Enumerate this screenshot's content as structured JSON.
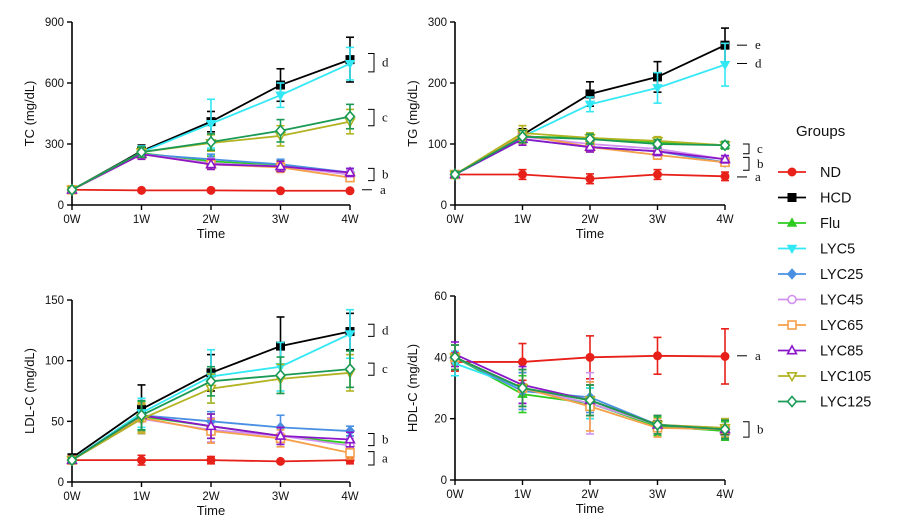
{
  "legend": {
    "title": "Groups",
    "items": [
      {
        "name": "ND",
        "color": "#e8201a",
        "marker": "circle"
      },
      {
        "name": "HCD",
        "color": "#000000",
        "marker": "square"
      },
      {
        "name": "Flu",
        "color": "#2ecc1f",
        "marker": "triangle-up"
      },
      {
        "name": "LYC5",
        "color": "#33e8f5",
        "marker": "triangle-down"
      },
      {
        "name": "LYC25",
        "color": "#4a90e2",
        "marker": "diamond"
      },
      {
        "name": "LYC45",
        "color": "#d291f0",
        "marker": "circle-open"
      },
      {
        "name": "LYC65",
        "color": "#f5a04a",
        "marker": "square-open"
      },
      {
        "name": "LYC85",
        "color": "#8a16c9",
        "marker": "triangle-open"
      },
      {
        "name": "LYC105",
        "color": "#b3b322",
        "marker": "triangle-down-open"
      },
      {
        "name": "LYC125",
        "color": "#1a9a55",
        "marker": "diamond-open"
      }
    ]
  },
  "chart_data": [
    {
      "type": "line",
      "ylabel": "TC (mg/dL)",
      "xlabel": "Time",
      "categories": [
        "0W",
        "1W",
        "2W",
        "3W",
        "4W"
      ],
      "ylim": [
        0,
        900
      ],
      "yticks": [
        "0",
        "300",
        "600",
        "900"
      ],
      "series": [
        {
          "name": "ND",
          "values": [
            75,
            72,
            72,
            70,
            70
          ],
          "errors": [
            8,
            6,
            6,
            6,
            6
          ]
        },
        {
          "name": "HCD",
          "values": [
            75,
            265,
            410,
            590,
            715
          ],
          "errors": [
            10,
            30,
            50,
            80,
            110
          ]
        },
        {
          "name": "Flu",
          "values": [
            75,
            255,
            215,
            195,
            150
          ],
          "errors": [
            10,
            25,
            25,
            25,
            20
          ]
        },
        {
          "name": "LYC5",
          "values": [
            75,
            260,
            400,
            540,
            695
          ],
          "errors": [
            10,
            30,
            120,
            60,
            80
          ]
        },
        {
          "name": "LYC25",
          "values": [
            75,
            250,
            225,
            200,
            160
          ],
          "errors": [
            10,
            25,
            25,
            25,
            20
          ]
        },
        {
          "name": "LYC45",
          "values": [
            75,
            250,
            205,
            190,
            150
          ],
          "errors": [
            10,
            25,
            25,
            25,
            20
          ]
        },
        {
          "name": "LYC65",
          "values": [
            75,
            250,
            200,
            185,
            135
          ],
          "errors": [
            10,
            25,
            25,
            25,
            20
          ]
        },
        {
          "name": "LYC85",
          "values": [
            75,
            250,
            200,
            190,
            160
          ],
          "errors": [
            10,
            25,
            25,
            25,
            20
          ]
        },
        {
          "name": "LYC105",
          "values": [
            75,
            260,
            305,
            340,
            410
          ],
          "errors": [
            10,
            25,
            40,
            50,
            60
          ]
        },
        {
          "name": "LYC125",
          "values": [
            75,
            260,
            310,
            365,
            435
          ],
          "errors": [
            10,
            25,
            40,
            55,
            60
          ]
        }
      ],
      "significance": [
        {
          "label": "d",
          "from": 745,
          "to": 655
        },
        {
          "label": "c",
          "from": 470,
          "to": 390
        },
        {
          "label": "b",
          "from": 180,
          "to": 120
        },
        {
          "label": "a",
          "from": 75,
          "to": null
        }
      ]
    },
    {
      "type": "line",
      "ylabel": "TG (mg/dL)",
      "xlabel": "Time",
      "categories": [
        "0W",
        "1W",
        "2W",
        "3W",
        "4W"
      ],
      "ylim": [
        0,
        300
      ],
      "yticks": [
        "0",
        "100",
        "200",
        "300"
      ],
      "series": [
        {
          "name": "ND",
          "values": [
            50,
            50,
            43,
            50,
            47
          ],
          "errors": [
            5,
            8,
            8,
            8,
            7
          ]
        },
        {
          "name": "HCD",
          "values": [
            50,
            115,
            182,
            210,
            262
          ],
          "errors": [
            5,
            10,
            20,
            25,
            28
          ]
        },
        {
          "name": "Flu",
          "values": [
            50,
            112,
            110,
            103,
            98
          ],
          "errors": [
            5,
            10,
            8,
            7,
            6
          ]
        },
        {
          "name": "LYC5",
          "values": [
            50,
            112,
            165,
            192,
            230
          ],
          "errors": [
            5,
            10,
            12,
            25,
            35
          ]
        },
        {
          "name": "LYC25",
          "values": [
            50,
            108,
            95,
            88,
            70
          ],
          "errors": [
            5,
            10,
            8,
            7,
            6
          ]
        },
        {
          "name": "LYC45",
          "values": [
            50,
            112,
            100,
            92,
            75
          ],
          "errors": [
            5,
            10,
            8,
            7,
            6
          ]
        },
        {
          "name": "LYC65",
          "values": [
            50,
            115,
            95,
            82,
            70
          ],
          "errors": [
            5,
            15,
            8,
            7,
            6
          ]
        },
        {
          "name": "LYC85",
          "values": [
            50,
            108,
            95,
            88,
            75
          ],
          "errors": [
            5,
            10,
            8,
            7,
            6
          ]
        },
        {
          "name": "LYC105",
          "values": [
            50,
            118,
            110,
            105,
            98
          ],
          "errors": [
            5,
            12,
            8,
            7,
            6
          ]
        },
        {
          "name": "LYC125",
          "values": [
            50,
            112,
            108,
            100,
            98
          ],
          "errors": [
            5,
            10,
            8,
            7,
            6
          ]
        }
      ],
      "significance": [
        {
          "label": "e",
          "from": 262,
          "to": null
        },
        {
          "label": "d",
          "from": 232,
          "to": null
        },
        {
          "label": "c",
          "from": 100,
          "to": 84
        },
        {
          "label": "b",
          "from": 78,
          "to": 57
        },
        {
          "label": "a",
          "from": 46,
          "to": null
        }
      ]
    },
    {
      "type": "line",
      "ylabel": "LDL-C (mg/dL)",
      "xlabel": "Time",
      "categories": [
        "0W",
        "1W",
        "2W",
        "3W",
        "4W"
      ],
      "ylim": [
        0,
        150
      ],
      "yticks": [
        "0",
        "50",
        "100",
        "150"
      ],
      "series": [
        {
          "name": "ND",
          "values": [
            18,
            18,
            18,
            17,
            18
          ],
          "errors": [
            2,
            4,
            3,
            1,
            3
          ]
        },
        {
          "name": "HCD",
          "values": [
            20,
            60,
            90,
            112,
            124
          ],
          "errors": [
            2,
            20,
            15,
            24,
            15
          ]
        },
        {
          "name": "Flu",
          "values": [
            18,
            54,
            46,
            38,
            32
          ],
          "errors": [
            2,
            12,
            10,
            7,
            6
          ]
        },
        {
          "name": "LYC5",
          "values": [
            18,
            57,
            87,
            95,
            122
          ],
          "errors": [
            2,
            12,
            22,
            20,
            20
          ]
        },
        {
          "name": "LYC25",
          "values": [
            18,
            55,
            50,
            45,
            42
          ],
          "errors": [
            2,
            12,
            8,
            10,
            4
          ]
        },
        {
          "name": "LYC45",
          "values": [
            18,
            52,
            43,
            38,
            30
          ],
          "errors": [
            2,
            12,
            10,
            7,
            6
          ]
        },
        {
          "name": "LYC65",
          "values": [
            18,
            53,
            42,
            36,
            24
          ],
          "errors": [
            2,
            12,
            10,
            7,
            5
          ]
        },
        {
          "name": "LYC85",
          "values": [
            18,
            55,
            46,
            38,
            35
          ],
          "errors": [
            2,
            12,
            10,
            7,
            6
          ]
        },
        {
          "name": "LYC105",
          "values": [
            18,
            52,
            77,
            85,
            90
          ],
          "errors": [
            2,
            12,
            12,
            12,
            15
          ]
        },
        {
          "name": "LYC125",
          "values": [
            18,
            55,
            83,
            88,
            93
          ],
          "errors": [
            2,
            12,
            12,
            15,
            15
          ]
        }
      ],
      "significance": [
        {
          "label": "d",
          "from": 130,
          "to": 120
        },
        {
          "label": "c",
          "from": 98,
          "to": 88
        },
        {
          "label": "b",
          "from": 40,
          "to": 30
        },
        {
          "label": "a",
          "from": 25,
          "to": 14
        }
      ]
    },
    {
      "type": "line",
      "ylabel": "HDL-C (mg/dL)",
      "xlabel": "Time",
      "categories": [
        "0W",
        "1W",
        "2W",
        "3W",
        "4W"
      ],
      "ylim": [
        0,
        60
      ],
      "yticks": [
        "0",
        "20",
        "40",
        "60"
      ],
      "series": [
        {
          "name": "ND",
          "values": [
            38.5,
            38.5,
            40,
            40.5,
            40.3
          ],
          "errors": [
            3,
            6,
            7,
            6,
            9
          ]
        },
        {
          "name": "HCD",
          "values": [
            40,
            30,
            26,
            18,
            16
          ],
          "errors": [
            4,
            5,
            5,
            3,
            3
          ]
        },
        {
          "name": "Flu",
          "values": [
            40,
            28,
            25,
            17.5,
            16
          ],
          "errors": [
            4,
            6,
            5,
            3,
            3
          ]
        },
        {
          "name": "LYC5",
          "values": [
            38,
            30,
            25,
            18,
            16.5
          ],
          "errors": [
            4,
            6,
            5,
            3,
            3
          ]
        },
        {
          "name": "LYC25",
          "values": [
            40,
            29,
            27,
            18,
            16.5
          ],
          "errors": [
            4,
            6,
            5,
            3,
            3
          ]
        },
        {
          "name": "LYC45",
          "values": [
            40,
            30,
            25,
            18,
            17
          ],
          "errors": [
            4,
            6,
            10,
            3,
            3
          ]
        },
        {
          "name": "LYC65",
          "values": [
            40,
            30,
            24,
            17,
            16.5
          ],
          "errors": [
            4,
            6,
            8,
            3,
            3
          ]
        },
        {
          "name": "LYC85",
          "values": [
            41,
            31,
            26,
            18,
            16.5
          ],
          "errors": [
            4,
            6,
            5,
            3,
            3
          ]
        },
        {
          "name": "LYC105",
          "values": [
            40,
            30,
            26,
            18,
            17
          ],
          "errors": [
            4,
            6,
            5,
            3,
            3
          ]
        },
        {
          "name": "LYC125",
          "values": [
            40,
            30,
            26,
            18,
            16.5
          ],
          "errors": [
            4,
            6,
            5,
            3,
            3
          ]
        }
      ],
      "significance": [
        {
          "label": "a",
          "from": 40.5,
          "to": null
        },
        {
          "label": "b",
          "from": 19,
          "to": 14
        }
      ]
    }
  ]
}
